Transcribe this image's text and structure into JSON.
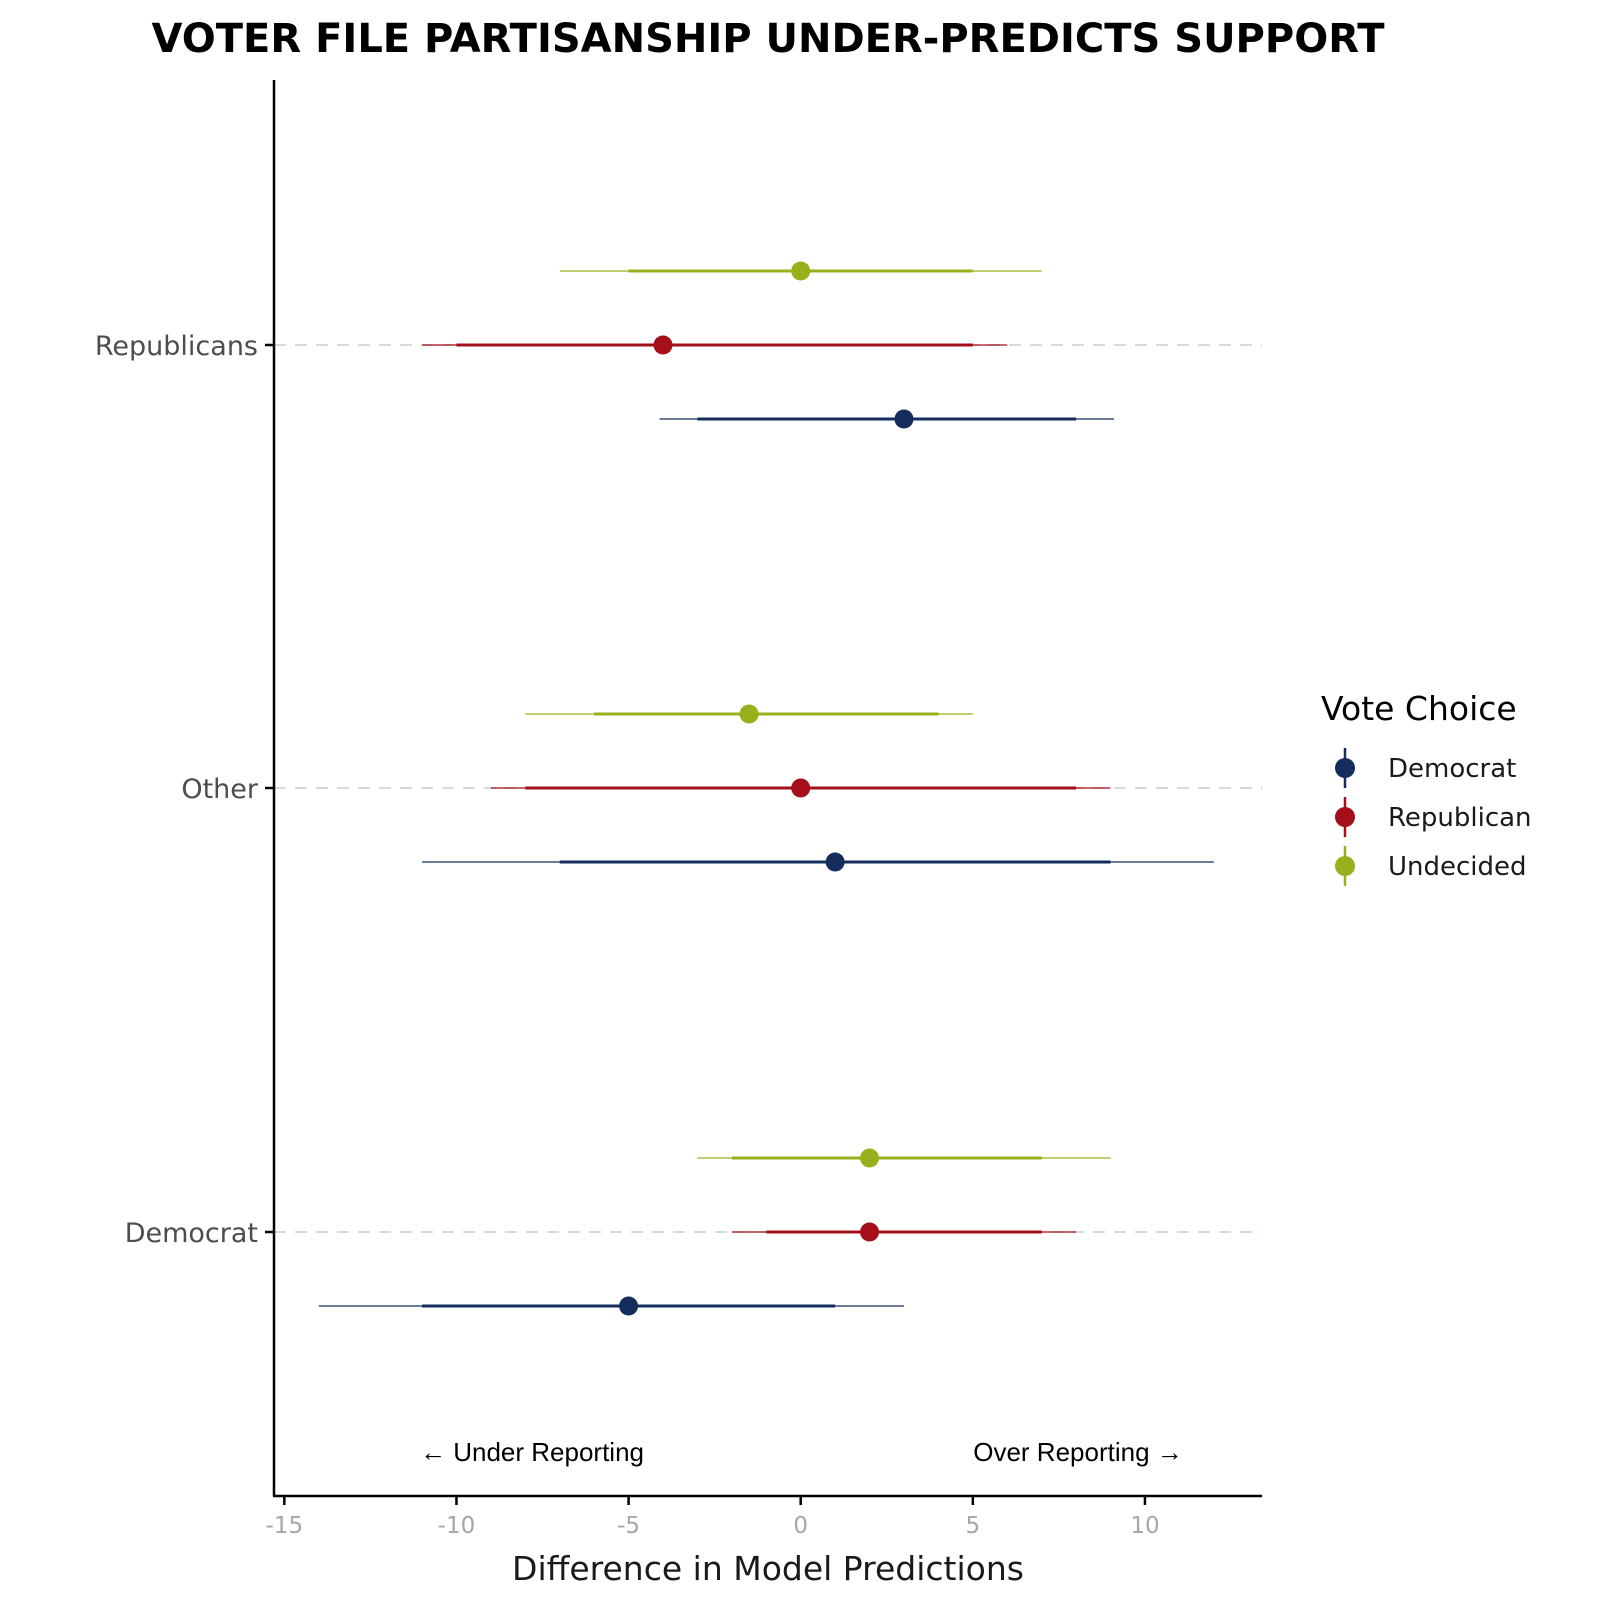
{
  "chart_data": {
    "type": "scatter",
    "title": "VOTER FILE PARTISANSHIP UNDER-PREDICTS SUPPORT",
    "xlabel": "Difference in Model Predictions",
    "ylabel": "",
    "xlim": [
      -15.3,
      13.4
    ],
    "xticks": [
      -15,
      -10,
      -5,
      0,
      5,
      10
    ],
    "xtick_labels": [
      "-15",
      "-10",
      "-5",
      "0",
      "5",
      "10"
    ],
    "categories": [
      "Democrat",
      "Other",
      "Republicans"
    ],
    "grid": "horizontal dashed at categories",
    "legend_title": "Vote Choice",
    "legend_position": "right",
    "annotations": {
      "left": "← Under Reporting",
      "right": "Over Reporting →"
    },
    "series": [
      {
        "name": "Democrat",
        "color": "#142d5c",
        "points": [
          {
            "category": "Democrat",
            "estimate": -5,
            "inner": [
              -11,
              1
            ],
            "outer": [
              -14,
              3
            ]
          },
          {
            "category": "Other",
            "estimate": 1,
            "inner": [
              -7,
              9
            ],
            "outer": [
              -11,
              12
            ]
          },
          {
            "category": "Republicans",
            "estimate": 3,
            "inner": [
              -3,
              8
            ],
            "outer": [
              -4.1,
              9.1
            ]
          }
        ]
      },
      {
        "name": "Republican",
        "color": "#a50f1a",
        "points": [
          {
            "category": "Democrat",
            "estimate": 2,
            "inner": [
              -1,
              7
            ],
            "outer": [
              -2,
              8
            ]
          },
          {
            "category": "Other",
            "estimate": 0,
            "inner": [
              -8,
              8
            ],
            "outer": [
              -9,
              9
            ]
          },
          {
            "category": "Republicans",
            "estimate": -4,
            "inner": [
              -10,
              5
            ],
            "outer": [
              -11,
              6
            ]
          }
        ]
      },
      {
        "name": "Undecided",
        "color": "#97b11c",
        "points": [
          {
            "category": "Democrat",
            "estimate": 2,
            "inner": [
              -2,
              7
            ],
            "outer": [
              -3,
              9
            ]
          },
          {
            "category": "Other",
            "estimate": -1.5,
            "inner": [
              -6,
              4
            ],
            "outer": [
              -8,
              5
            ]
          },
          {
            "category": "Republicans",
            "estimate": 0,
            "inner": [
              -5,
              5
            ],
            "outer": [
              -7,
              7
            ]
          }
        ]
      }
    ]
  }
}
